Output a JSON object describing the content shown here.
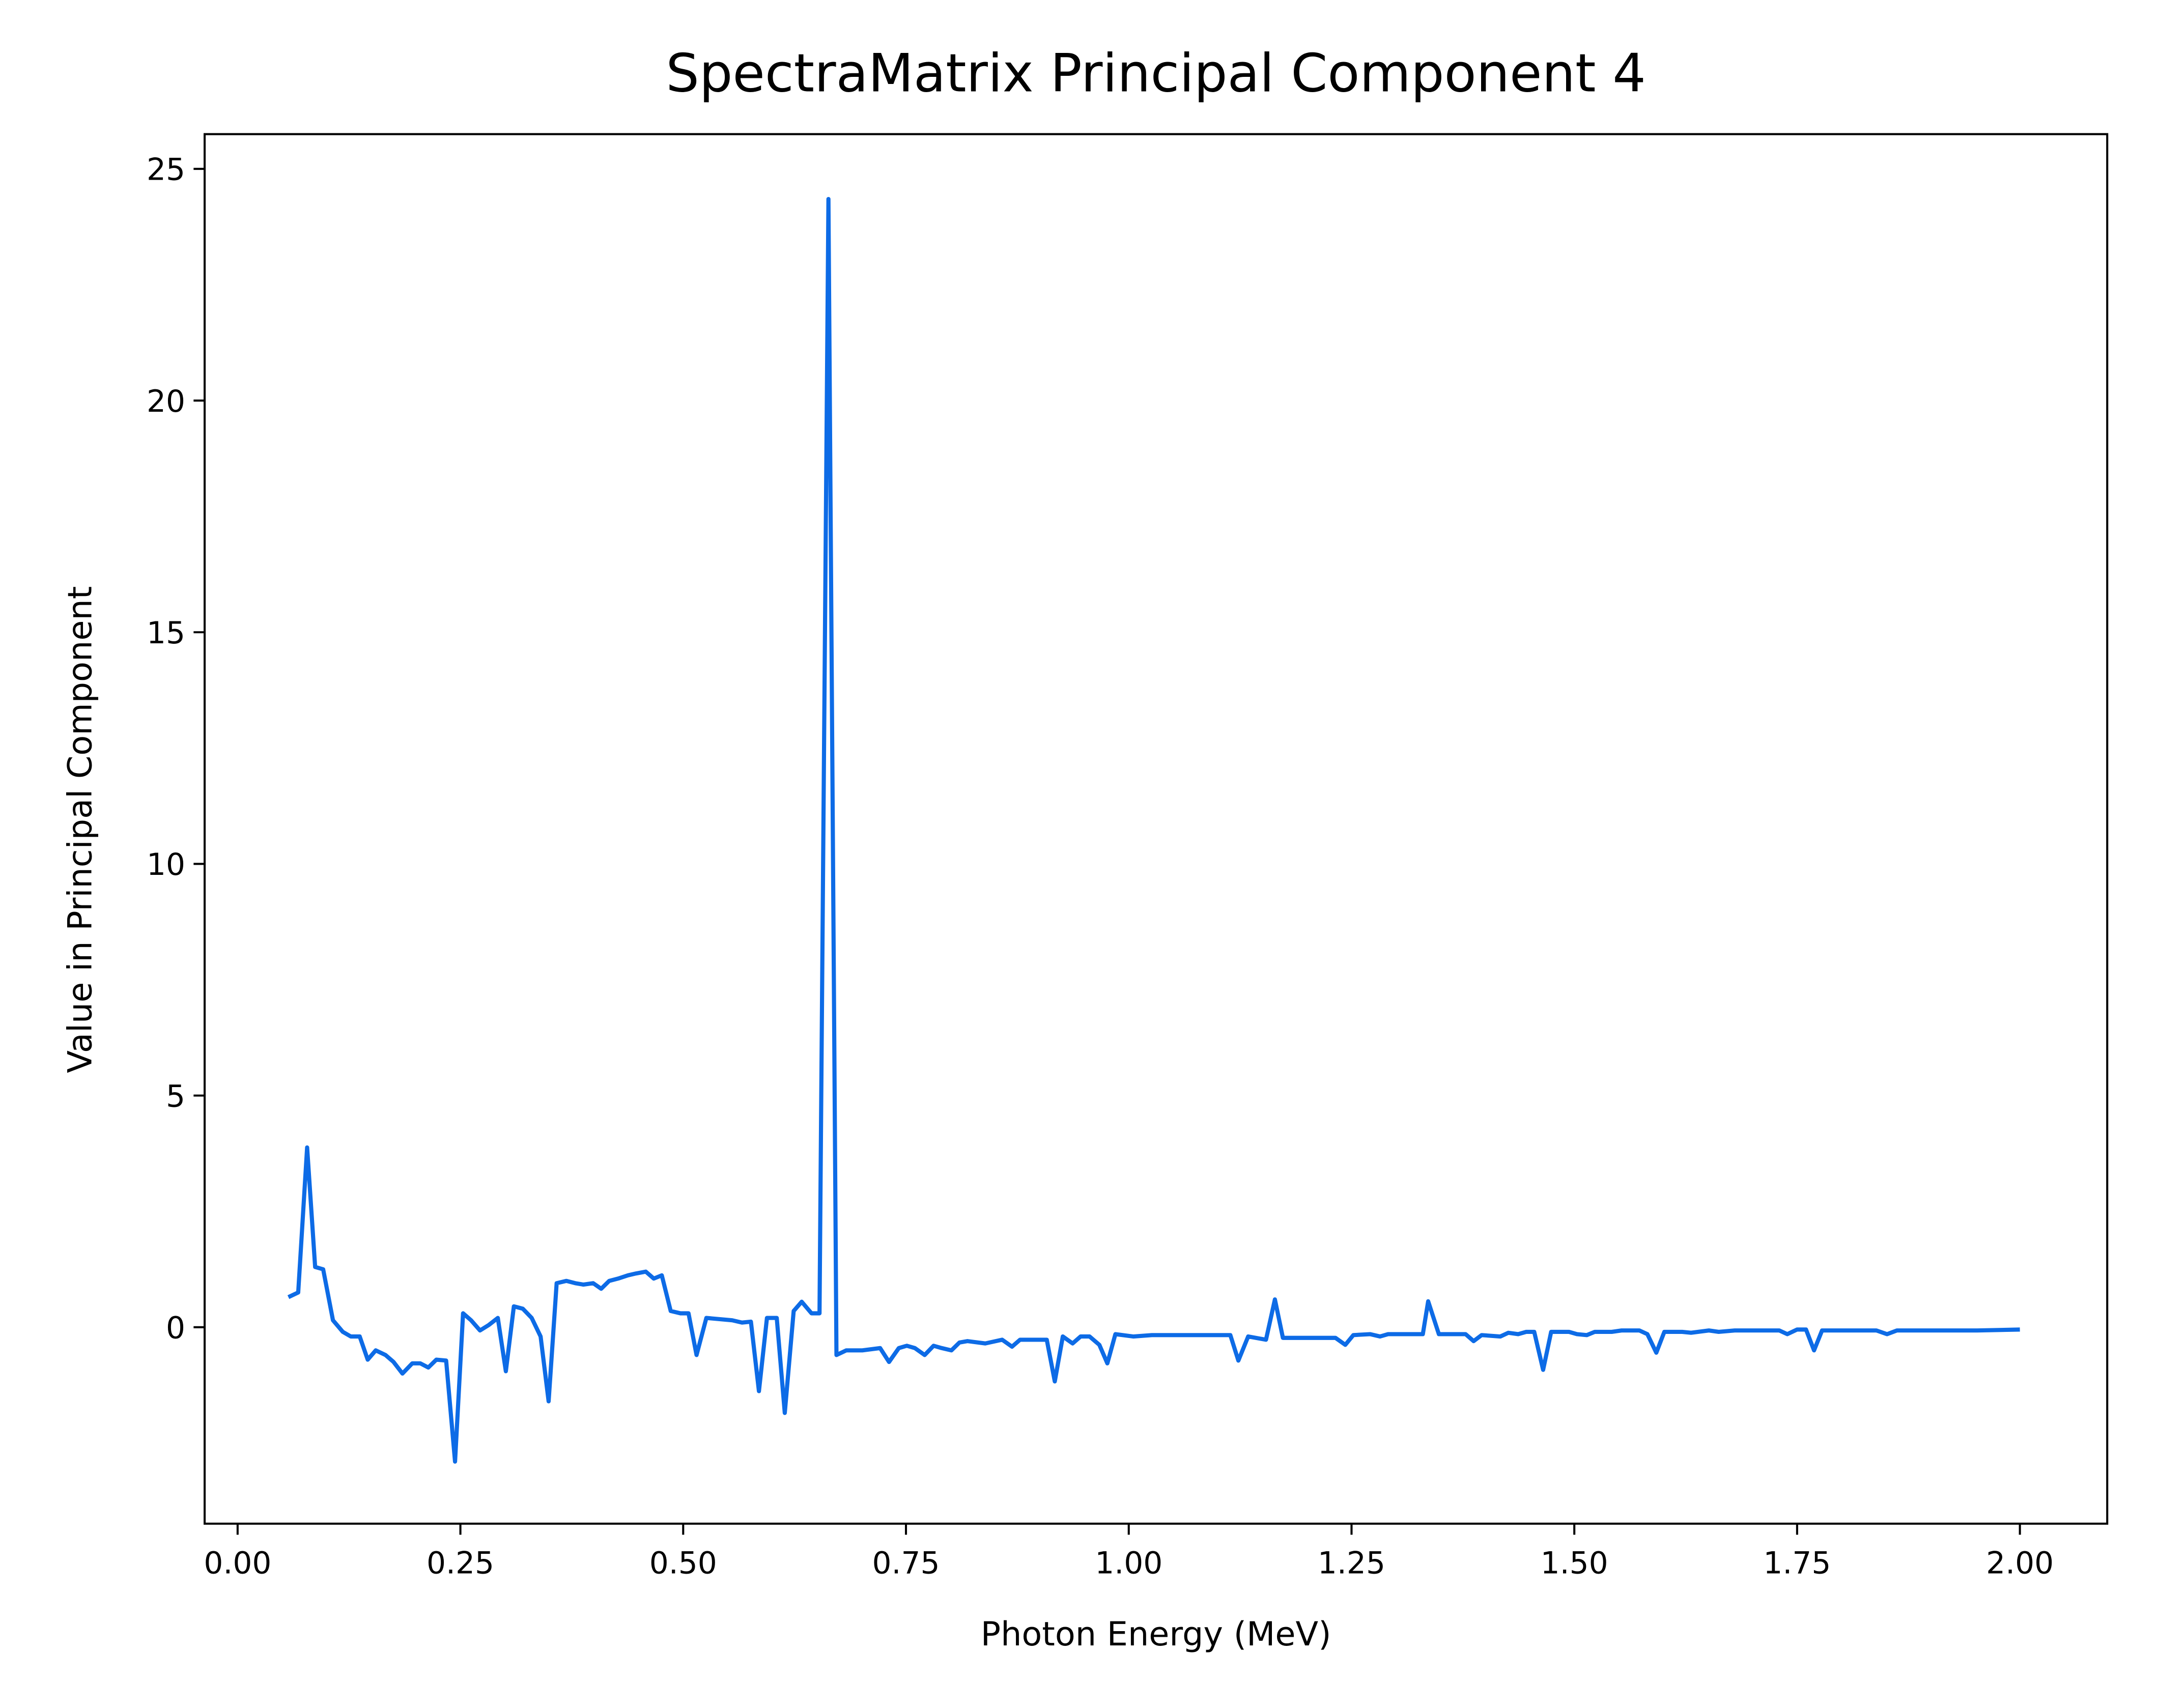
{
  "chart_data": {
    "type": "line",
    "title": "SpectraMatrix Principal Component 4",
    "xlabel": "Photon Energy (MeV)",
    "ylabel": "Value in Principal Component",
    "color": "#0d6be6",
    "x": [
      0.057,
      0.068,
      0.078,
      0.087,
      0.096,
      0.107,
      0.118,
      0.127,
      0.137,
      0.146,
      0.155,
      0.166,
      0.175,
      0.185,
      0.196,
      0.205,
      0.214,
      0.223,
      0.234,
      0.244,
      0.253,
      0.262,
      0.272,
      0.282,
      0.292,
      0.301,
      0.31,
      0.32,
      0.33,
      0.34,
      0.349,
      0.358,
      0.369,
      0.379,
      0.388,
      0.399,
      0.408,
      0.417,
      0.427,
      0.438,
      0.447,
      0.458,
      0.467,
      0.476,
      0.486,
      0.497,
      0.506,
      0.515,
      0.526,
      0.555,
      0.566,
      0.576,
      0.585,
      0.594,
      0.605,
      0.614,
      0.624,
      0.633,
      0.644,
      0.653,
      0.663,
      0.672,
      0.683,
      0.701,
      0.721,
      0.731,
      0.742,
      0.751,
      0.76,
      0.771,
      0.781,
      0.79,
      0.801,
      0.81,
      0.819,
      0.839,
      0.858,
      0.869,
      0.878,
      0.908,
      0.917,
      0.926,
      0.937,
      0.946,
      0.956,
      0.967,
      0.976,
      0.985,
      1.005,
      1.026,
      1.064,
      1.114,
      1.123,
      1.134,
      1.154,
      1.164,
      1.173,
      1.203,
      1.232,
      1.243,
      1.252,
      1.271,
      1.282,
      1.291,
      1.321,
      1.33,
      1.336,
      1.348,
      1.378,
      1.387,
      1.396,
      1.417,
      1.426,
      1.437,
      1.446,
      1.455,
      1.465,
      1.474,
      1.494,
      1.503,
      1.514,
      1.523,
      1.542,
      1.553,
      1.573,
      1.582,
      1.592,
      1.601,
      1.621,
      1.631,
      1.651,
      1.662,
      1.68,
      1.701,
      1.73,
      1.739,
      1.75,
      1.76,
      1.769,
      1.778,
      1.839,
      1.851,
      1.862,
      1.905,
      1.952,
      2.0
    ],
    "values": [
      0.65,
      0.75,
      3.88,
      1.3,
      1.25,
      0.15,
      -0.1,
      -0.2,
      -0.2,
      -0.7,
      -0.5,
      -0.6,
      -0.75,
      -1.0,
      -0.78,
      -0.78,
      -0.87,
      -0.7,
      -0.72,
      -2.9,
      0.3,
      0.15,
      -0.07,
      0.05,
      0.2,
      -0.95,
      0.45,
      0.4,
      0.2,
      -0.2,
      -1.6,
      0.95,
      1.0,
      0.95,
      0.92,
      0.95,
      0.83,
      1.0,
      1.05,
      1.12,
      1.16,
      1.2,
      1.05,
      1.12,
      0.35,
      0.3,
      0.3,
      -0.6,
      0.2,
      0.15,
      0.1,
      0.12,
      -1.38,
      0.2,
      0.2,
      -1.85,
      0.35,
      0.55,
      0.3,
      0.3,
      24.35,
      -0.6,
      -0.5,
      -0.5,
      -0.45,
      -0.75,
      -0.45,
      -0.4,
      -0.45,
      -0.6,
      -0.4,
      -0.45,
      -0.5,
      -0.33,
      -0.3,
      -0.35,
      -0.27,
      -0.42,
      -0.27,
      -0.27,
      -1.17,
      -0.2,
      -0.35,
      -0.2,
      -0.2,
      -0.38,
      -0.78,
      -0.15,
      -0.2,
      -0.17,
      -0.17,
      -0.17,
      -0.72,
      -0.2,
      -0.27,
      0.6,
      -0.23,
      -0.23,
      -0.23,
      -0.38,
      -0.17,
      -0.15,
      -0.2,
      -0.15,
      -0.15,
      -0.15,
      0.56,
      -0.15,
      -0.15,
      -0.3,
      -0.17,
      -0.2,
      -0.12,
      -0.15,
      -0.1,
      -0.1,
      -0.92,
      -0.1,
      -0.1,
      -0.15,
      -0.17,
      -0.1,
      -0.1,
      -0.07,
      -0.07,
      -0.15,
      -0.55,
      -0.1,
      -0.1,
      -0.12,
      -0.07,
      -0.1,
      -0.07,
      -0.07,
      -0.07,
      -0.15,
      -0.05,
      -0.05,
      -0.5,
      -0.07,
      -0.07,
      -0.15,
      -0.07,
      -0.07,
      -0.07,
      -0.05
    ],
    "xlim": [
      -0.037,
      2.098
    ],
    "ylim": [
      -4.24,
      25.75
    ],
    "xticks": [
      {
        "value": 0,
        "label": "0.00"
      },
      {
        "value": 0.25,
        "label": "0.25"
      },
      {
        "value": 0.5,
        "label": "0.50"
      },
      {
        "value": 0.75,
        "label": "0.75"
      },
      {
        "value": 1,
        "label": "1.00"
      },
      {
        "value": 1.25,
        "label": "1.25"
      },
      {
        "value": 1.5,
        "label": "1.50"
      },
      {
        "value": 1.75,
        "label": "1.75"
      },
      {
        "value": 2,
        "label": "2.00"
      }
    ],
    "yticks": [
      0,
      5,
      10,
      15,
      20,
      25
    ],
    "grid": false
  }
}
